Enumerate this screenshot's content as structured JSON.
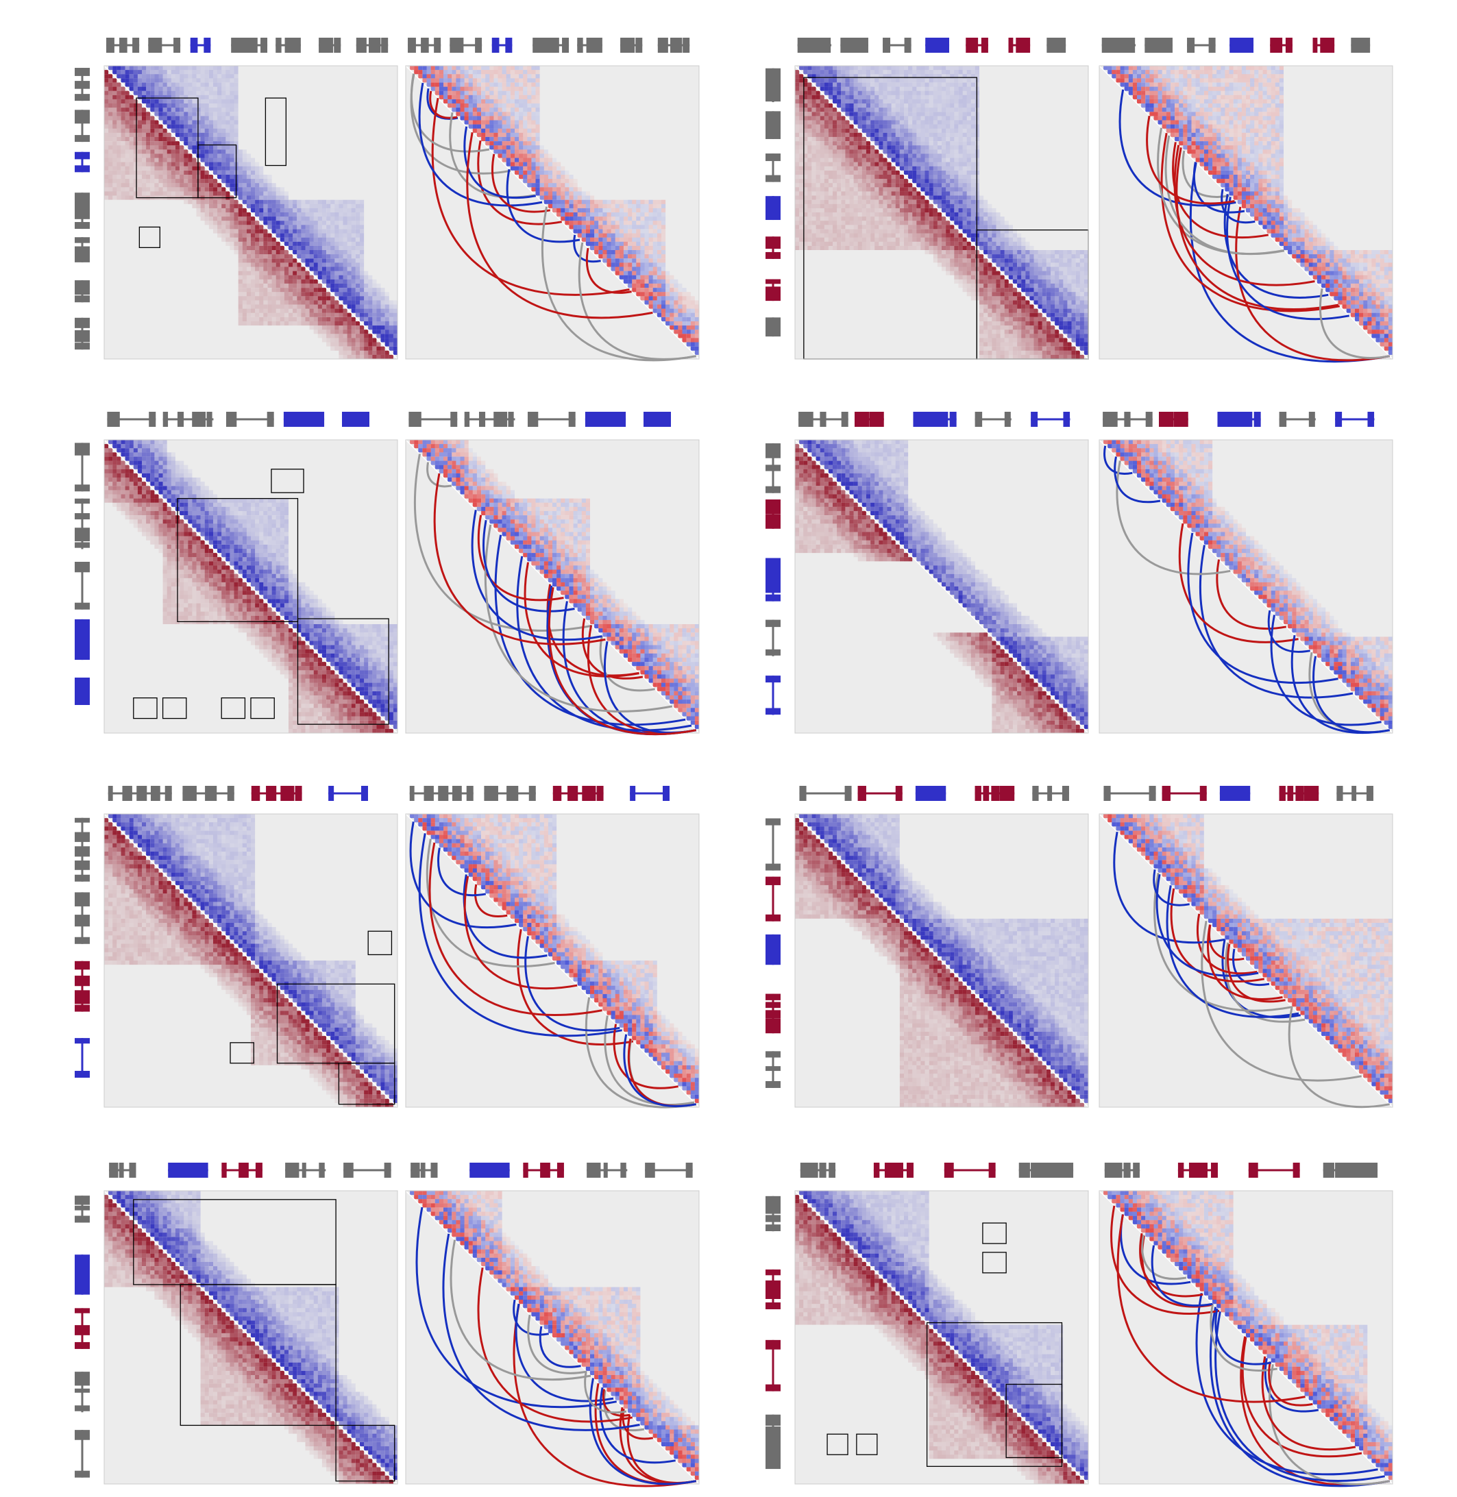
{
  "figure": {
    "rows": 4,
    "columns": 2,
    "panels_per_figure": [
      "contact-map",
      "loop-arcs"
    ]
  },
  "colors": {
    "upper_triangle": "#1a1ab8",
    "lower_triangle": "#8b0015",
    "blue_gene": "#3030c8",
    "red_gene": "#960c32",
    "other_gene": "#6e6e6e",
    "arc_blue": "#1530c0",
    "arc_red": "#c01515",
    "arc_gray": "#999999",
    "map_background": "#ececec",
    "box_stroke": "#000000"
  },
  "genes": {
    "r1c1": [
      "other",
      "other",
      "blue",
      "other",
      "other",
      "other",
      "other"
    ],
    "r1c2": [
      "other",
      "other",
      "other",
      "blue",
      "red",
      "red",
      "other"
    ],
    "r2c1": [
      "other",
      "other",
      "other",
      "blue",
      "blue"
    ],
    "r2c2": [
      "other",
      "red",
      "blue",
      "other",
      "blue"
    ],
    "r3c1": [
      "other",
      "other",
      "red",
      "blue"
    ],
    "r3c2": [
      "other",
      "red",
      "blue",
      "red",
      "other"
    ],
    "r4c1": [
      "other",
      "blue",
      "red",
      "other",
      "other"
    ],
    "r4c2": [
      "other",
      "red",
      "red",
      "other"
    ]
  },
  "arc_colors": {
    "r1c1": [
      "red",
      "blue",
      "gray",
      "red",
      "blue",
      "red",
      "gray",
      "blue",
      "gray",
      "red",
      "blue",
      "gray",
      "red",
      "blue",
      "gray",
      "red"
    ],
    "r1c2": [
      "gray",
      "blue",
      "red",
      "blue",
      "red",
      "blue",
      "gray",
      "red",
      "blue",
      "red",
      "gray",
      "blue",
      "red",
      "blue",
      "gray",
      "red"
    ],
    "r2c1": [
      "blue",
      "gray",
      "red",
      "blue",
      "red",
      "gray",
      "blue",
      "red",
      "blue",
      "gray",
      "red",
      "blue",
      "red",
      "blue",
      "gray",
      "red",
      "blue",
      "red"
    ],
    "r2c2": [
      "blue",
      "red",
      "gray",
      "blue",
      "red",
      "gray",
      "blue",
      "blue",
      "blue",
      "blue",
      "blue",
      "blue"
    ],
    "r3c1": [
      "red",
      "gray",
      "blue",
      "red",
      "gray",
      "blue",
      "red",
      "blue",
      "gray",
      "red",
      "blue",
      "gray",
      "red",
      "blue",
      "red",
      "blue"
    ],
    "r3c2": [
      "blue",
      "red",
      "gray",
      "blue",
      "red",
      "blue",
      "gray",
      "blue",
      "red",
      "gray",
      "blue",
      "red",
      "blue",
      "gray",
      "red"
    ],
    "r4c1": [
      "blue",
      "red",
      "blue",
      "gray",
      "red",
      "blue",
      "red",
      "blue",
      "gray",
      "red",
      "blue",
      "red",
      "gray",
      "blue",
      "red",
      "blue",
      "red",
      "gray"
    ],
    "r4c2": [
      "red",
      "blue",
      "red",
      "gray",
      "blue",
      "red",
      "blue",
      "red",
      "gray",
      "blue",
      "red",
      "blue",
      "red",
      "gray",
      "blue",
      "red",
      "blue",
      "red"
    ]
  }
}
